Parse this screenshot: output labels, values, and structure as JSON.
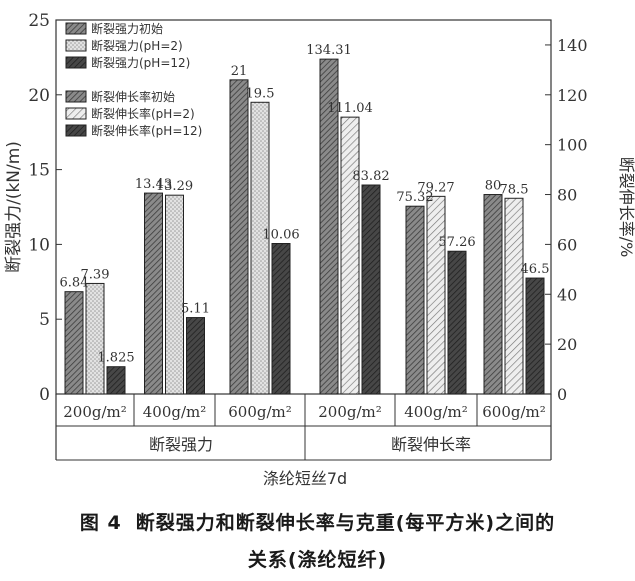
{
  "chart_data": {
    "type": "bar",
    "title": "",
    "xlabel": "涤纶短丝7d",
    "groups": [
      {
        "label": "断裂强力",
        "axis": "left",
        "categories": [
          "200g/m²",
          "400g/m²",
          "600g/m²"
        ],
        "series": [
          {
            "name": "断裂强力初始",
            "values": [
              6.84,
              13.43,
              21
            ],
            "labels": [
              "6.84",
              "13.43",
              "21"
            ],
            "pattern": "hatch-dense",
            "color": "#6e6e6e"
          },
          {
            "name": "断裂强力(pH=2)",
            "values": [
              7.39,
              13.29,
              19.5
            ],
            "labels": [
              "7.39",
              "13.29",
              "19.5"
            ],
            "pattern": "dots",
            "color": "#cfcfcf"
          },
          {
            "name": "断裂强力(pH=12)",
            "values": [
              1.825,
              5.11,
              10.06
            ],
            "labels": [
              "1.825",
              "5.11",
              "10.06"
            ],
            "pattern": "hatch-dark",
            "color": "#3a3a3a"
          }
        ]
      },
      {
        "label": "断裂伸长率",
        "axis": "right",
        "categories": [
          "200g/m²",
          "400g/m²",
          "600g/m²"
        ],
        "series": [
          {
            "name": "断裂伸长率初始",
            "values": [
              134.31,
              75.32,
              80
            ],
            "labels": [
              "134.31",
              "75.32",
              "80"
            ],
            "pattern": "hatch-dense",
            "color": "#6e6e6e"
          },
          {
            "name": "断裂伸长率(pH=2)",
            "values": [
              111.04,
              79.27,
              78.5
            ],
            "labels": [
              "111.04",
              "79.27",
              "78.5"
            ],
            "pattern": "hatch-light",
            "color": "#d8d8d8"
          },
          {
            "name": "断裂伸长率(pH=12)",
            "values": [
              83.82,
              57.26,
              46.5
            ],
            "labels": [
              "83.82",
              "57.26",
              "46.5"
            ],
            "pattern": "hatch-dark",
            "color": "#3a3a3a"
          }
        ]
      }
    ],
    "y_left": {
      "label": "断裂强力/(kN/m)",
      "range": [
        0,
        25
      ],
      "ticks": [
        0,
        5,
        10,
        15,
        20,
        25
      ]
    },
    "y_right": {
      "label": "断裂伸长率/%",
      "range": [
        0,
        150
      ],
      "ticks": [
        0,
        20,
        40,
        60,
        80,
        100,
        120,
        140
      ]
    },
    "grid": false,
    "legend_position": "top-left"
  },
  "caption": {
    "figure_number": "图 4",
    "line1": "断裂强力和断裂伸长率与克重(每平方米)之间的",
    "line2": "关系(涤纶短纤)"
  }
}
